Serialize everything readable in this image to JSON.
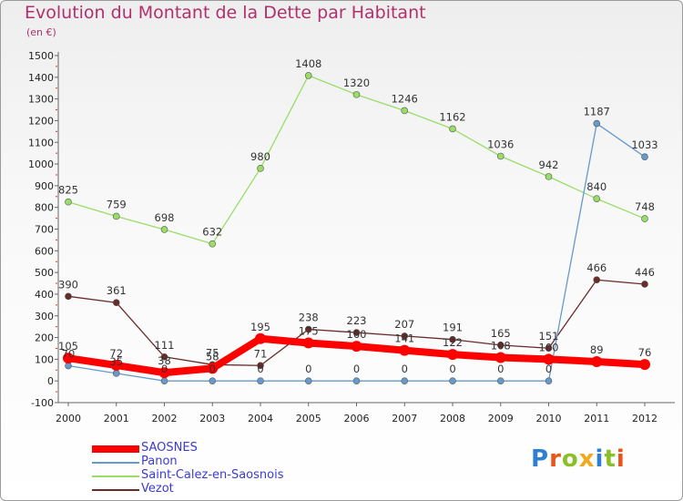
{
  "title": "Evolution du Montant de la Dette par Habitant",
  "subtitle": "(en €)",
  "logo_text": "Proxiti",
  "chart_data": {
    "type": "line",
    "title": "Evolution du Montant de la Dette par Habitant",
    "subtitle": "(en €)",
    "x": [
      2000,
      2001,
      2002,
      2003,
      2004,
      2005,
      2006,
      2007,
      2008,
      2009,
      2010,
      2011,
      2012
    ],
    "ylim": [
      -100,
      1500
    ],
    "yticks": [
      -100,
      0,
      100,
      200,
      300,
      400,
      500,
      600,
      700,
      800,
      900,
      1000,
      1100,
      1200,
      1300,
      1400,
      1500
    ],
    "grid": false,
    "legend_position": "bottom-left",
    "series": [
      {
        "name": "SAOSNES",
        "color": "#ff0000",
        "values": [
          105,
          72,
          38,
          58,
          195,
          175,
          160,
          141,
          122,
          108,
          100,
          89,
          76
        ]
      },
      {
        "name": "Panon",
        "color": "#6699cc",
        "values": [
          70,
          35,
          0,
          0,
          0,
          0,
          0,
          0,
          0,
          0,
          0,
          1187,
          1033
        ]
      },
      {
        "name": "Saint-Calez-en-Saosnois",
        "color": "#99dd66",
        "values": [
          825,
          759,
          698,
          632,
          980,
          1408,
          1320,
          1246,
          1162,
          1036,
          942,
          840,
          748
        ]
      },
      {
        "name": "Vezot",
        "color": "#6b2a2a",
        "values": [
          390,
          361,
          111,
          75,
          71,
          238,
          223,
          207,
          191,
          165,
          151,
          466,
          446
        ]
      }
    ]
  }
}
